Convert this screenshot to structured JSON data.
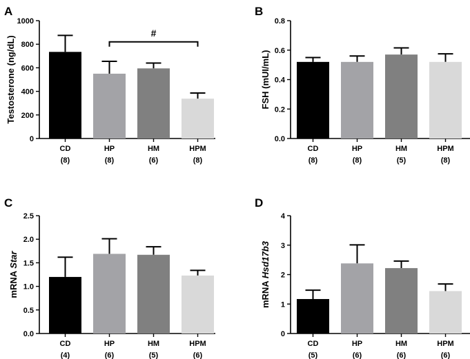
{
  "colors": {
    "CD": "#000000",
    "HP": "#a3a3a7",
    "HM": "#808080",
    "HPM": "#d9d9d9"
  },
  "chart_data": [
    {
      "type": "bar",
      "panel": "A",
      "ylabel": "Testosterone (ng/dL)",
      "ylabel_parts": [
        {
          "text": "Testosterone (ng/dL)",
          "italic": false
        }
      ],
      "ylim": [
        0,
        1000
      ],
      "yticks": [
        0,
        200,
        400,
        600,
        800,
        1000
      ],
      "tick_labels": [
        "0",
        "200",
        "400",
        "600",
        "800",
        "1000"
      ],
      "categories": [
        "CD",
        "HP",
        "HM",
        "HPM"
      ],
      "n_labels": [
        "(8)",
        "(8)",
        "(6)",
        "(8)"
      ],
      "values": [
        735,
        550,
        595,
        338
      ],
      "errors": [
        140,
        105,
        45,
        48
      ],
      "significance": {
        "from": 1,
        "to": 3,
        "label": "#",
        "y": 820
      }
    },
    {
      "type": "bar",
      "panel": "B",
      "ylabel": "FSH (mUI/mL)",
      "ylabel_parts": [
        {
          "text": "FSH (mUI/mL)",
          "italic": false
        }
      ],
      "ylim": [
        0,
        0.8
      ],
      "yticks": [
        0,
        0.2,
        0.4,
        0.6,
        0.8
      ],
      "tick_labels": [
        "0.0",
        "0.2",
        "0.4",
        "0.6",
        "0.8"
      ],
      "categories": [
        "CD",
        "HP",
        "HM",
        "HPM"
      ],
      "n_labels": [
        "(8)",
        "(8)",
        "(5)",
        "(8)"
      ],
      "values": [
        0.52,
        0.52,
        0.57,
        0.52
      ],
      "errors": [
        0.03,
        0.04,
        0.045,
        0.055
      ]
    },
    {
      "type": "bar",
      "panel": "C",
      "ylabel": "mRNA Star",
      "ylabel_parts": [
        {
          "text": "mRNA ",
          "italic": false
        },
        {
          "text": "Star",
          "italic": true
        }
      ],
      "ylim": [
        0,
        2.5
      ],
      "yticks": [
        0,
        0.5,
        1.0,
        1.5,
        2.0,
        2.5
      ],
      "tick_labels": [
        "0.0",
        "0.5",
        "1.0",
        "1.5",
        "2.0",
        "2.5"
      ],
      "categories": [
        "CD",
        "HP",
        "HM",
        "HPM"
      ],
      "n_labels": [
        "(4)",
        "(6)",
        "(5)",
        "(6)"
      ],
      "values": [
        1.2,
        1.69,
        1.67,
        1.23
      ],
      "errors": [
        0.42,
        0.32,
        0.17,
        0.11
      ]
    },
    {
      "type": "bar",
      "panel": "D",
      "ylabel": "mRNA Hsd17b3",
      "ylabel_parts": [
        {
          "text": "mRNA ",
          "italic": false
        },
        {
          "text": "Hsd17b3",
          "italic": true
        }
      ],
      "ylim": [
        0,
        4
      ],
      "yticks": [
        0,
        1,
        2,
        3,
        4
      ],
      "tick_labels": [
        "0",
        "1",
        "2",
        "3",
        "4"
      ],
      "categories": [
        "CD",
        "HP",
        "HM",
        "HPM"
      ],
      "n_labels": [
        "(5)",
        "(6)",
        "(6)",
        "(6)"
      ],
      "values": [
        1.17,
        2.38,
        2.22,
        1.44
      ],
      "errors": [
        0.3,
        0.63,
        0.24,
        0.24
      ]
    }
  ]
}
